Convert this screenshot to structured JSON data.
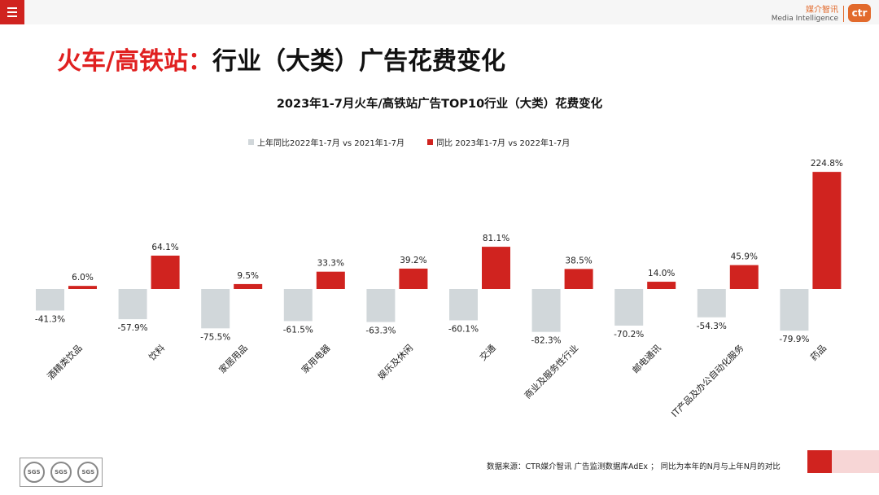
{
  "header": {
    "brand_cn": "媒介智讯",
    "brand_en": "Media Intelligence",
    "logo_text": "ctr"
  },
  "page_title": {
    "red_part": "火车/高铁站",
    "colon": "：",
    "rest": "行业（大类）广告花费变化"
  },
  "colors": {
    "series_prev": "#d1d7da",
    "series_curr": "#d0231f",
    "accent": "#e02020"
  },
  "chart_data": {
    "type": "bar",
    "title": "2023年1-7月火车/高铁站广告TOP10行业（大类）花费变化",
    "categories": [
      "酒精类饮品",
      "饮料",
      "家居用品",
      "家用电器",
      "娱乐及休闲",
      "交通",
      "商业及服务性行业",
      "邮电通讯",
      "IT产品及办公自动化服务",
      "药品"
    ],
    "series": [
      {
        "name": "上年同比2022年1-7月  vs  2021年1-7月",
        "values": [
          -41.3,
          -57.9,
          -75.5,
          -61.5,
          -63.3,
          -60.1,
          -82.3,
          -70.2,
          -54.3,
          -79.9
        ],
        "labels": [
          "-41.3%",
          "-57.9%",
          "-75.5%",
          "-61.5%",
          "-63.3%",
          "-60.1%",
          "-82.3%",
          "-70.2%",
          "-54.3%",
          "-79.9%"
        ]
      },
      {
        "name": "同比 2023年1-7月  vs  2022年1-7月",
        "values": [
          6.0,
          64.1,
          9.5,
          33.3,
          39.2,
          81.1,
          38.5,
          14.0,
          45.9,
          224.8
        ],
        "labels": [
          "6.0%",
          "64.1%",
          "9.5%",
          "33.3%",
          "39.2%",
          "81.1%",
          "38.5%",
          "14.0%",
          "45.9%",
          "224.8%"
        ]
      }
    ],
    "xlabel": "",
    "ylabel": "",
    "unit": "%",
    "grid": false,
    "legend_position": "top"
  },
  "footer": {
    "source": "数据来源：CTR媒介智讯 广告监测数据库AdEx ；  同比为本年的N月与上年N月的对比",
    "cert_label": "SGS"
  }
}
